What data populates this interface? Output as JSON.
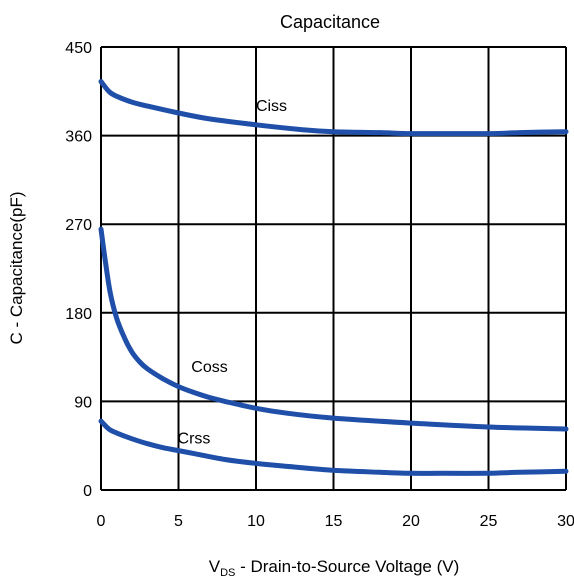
{
  "chart_data": {
    "type": "line",
    "title": "Capacitance",
    "xlabel_prefix": "V",
    "xlabel_sub": "DS",
    "xlabel_rest": " - Drain-to-Source Voltage (V)",
    "ylabel": "C - Capacitance(pF)",
    "xlim": [
      0,
      30
    ],
    "ylim": [
      0,
      450
    ],
    "x_ticks": [
      0,
      5,
      10,
      15,
      20,
      25,
      30
    ],
    "y_ticks": [
      0,
      90,
      180,
      270,
      360,
      450
    ],
    "grid": true,
    "line_color": "#1f4fa8",
    "series": [
      {
        "name": "Ciss",
        "label_at": [
          11,
          385
        ],
        "x": [
          0,
          0.5,
          1,
          2,
          3,
          5,
          7,
          10,
          13,
          15,
          18,
          20,
          22,
          25,
          27,
          30
        ],
        "y": [
          415,
          405,
          400,
          394,
          390,
          383,
          377,
          371,
          366,
          364,
          363,
          362,
          362,
          362,
          363,
          364
        ]
      },
      {
        "name": "Coss",
        "label_at": [
          7,
          120
        ],
        "x": [
          0,
          0.3,
          0.6,
          1,
          1.5,
          2,
          2.5,
          3,
          4,
          5,
          6,
          7,
          8,
          10,
          12,
          15,
          20,
          25,
          30
        ],
        "y": [
          265,
          230,
          200,
          175,
          155,
          140,
          130,
          123,
          113,
          105,
          99,
          94,
          90,
          83,
          78,
          73,
          68,
          64,
          62
        ]
      },
      {
        "name": "Crss",
        "label_at": [
          6,
          47
        ],
        "x": [
          0,
          0.5,
          1,
          2,
          3,
          4,
          5,
          6,
          8,
          10,
          12,
          15,
          18,
          20,
          22,
          25,
          27,
          30
        ],
        "y": [
          70,
          62,
          58,
          52,
          47,
          43,
          40,
          37,
          31,
          27,
          24,
          20,
          18,
          17,
          17,
          17,
          18,
          19
        ]
      }
    ]
  }
}
